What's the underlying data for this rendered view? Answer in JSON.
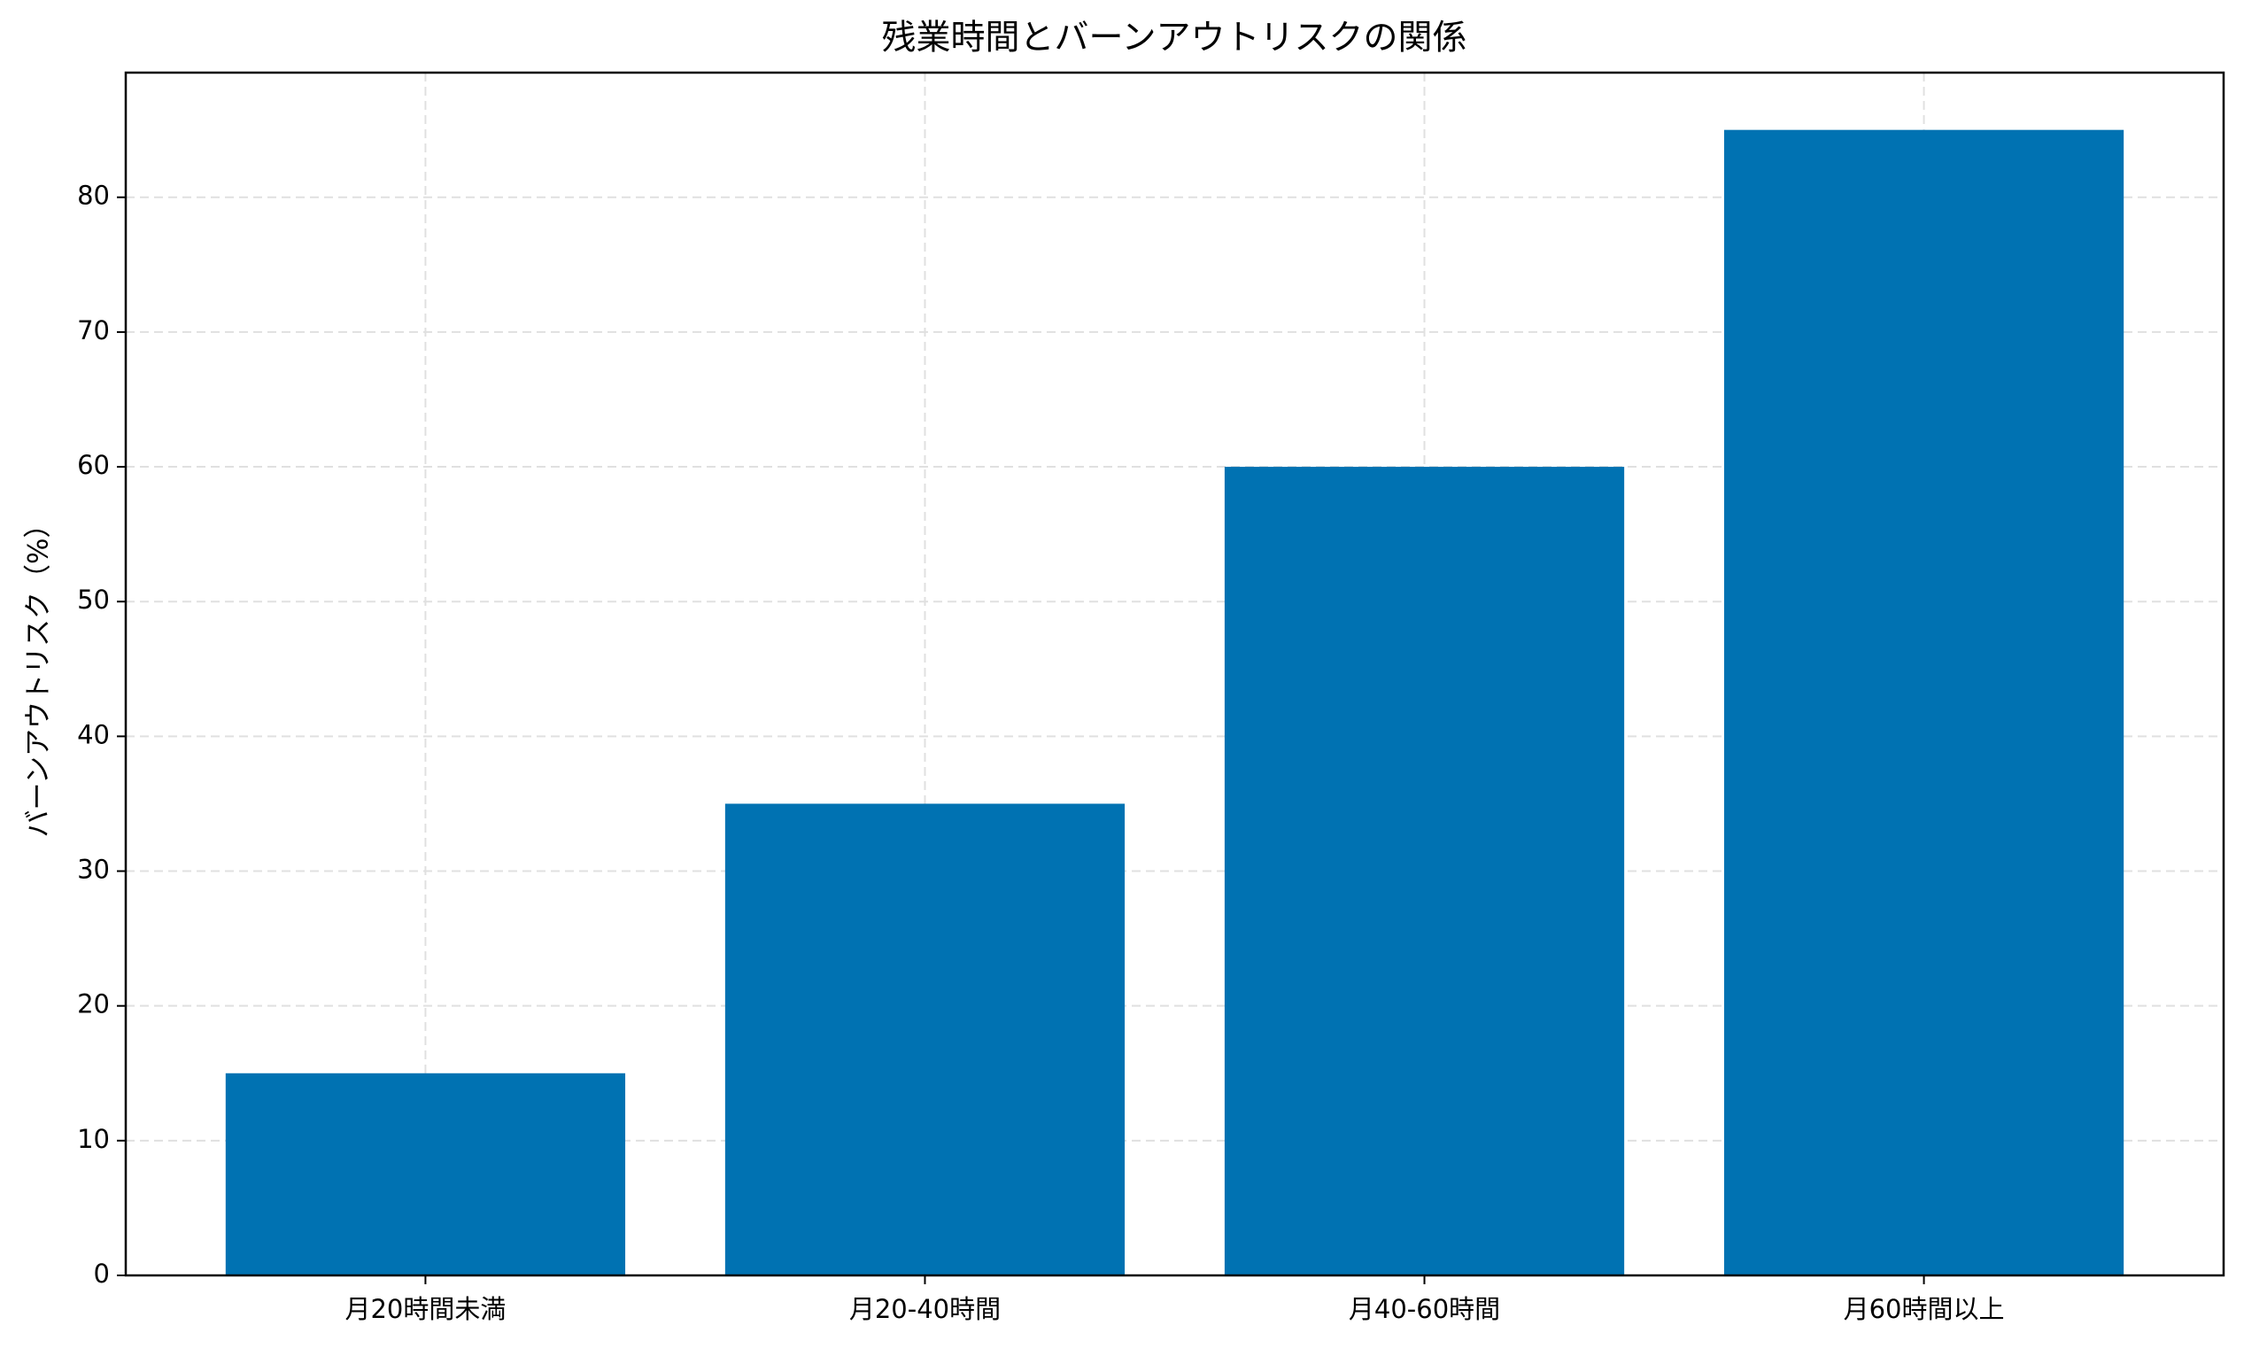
{
  "chart_data": {
    "type": "bar",
    "title": "残業時間とバーンアウトリスクの関係",
    "y_label": "バーンアウトリスク（%）",
    "categories": [
      "月20時間未満",
      "月20-40時間",
      "月40-60時間",
      "月60時間以上"
    ],
    "values": [
      15,
      35,
      60,
      85
    ],
    "color": "#0072b2",
    "ylim": [
      0,
      89.25
    ],
    "yticks": [
      0,
      10,
      20,
      30,
      40,
      50,
      60,
      70,
      80
    ],
    "grid": true
  }
}
